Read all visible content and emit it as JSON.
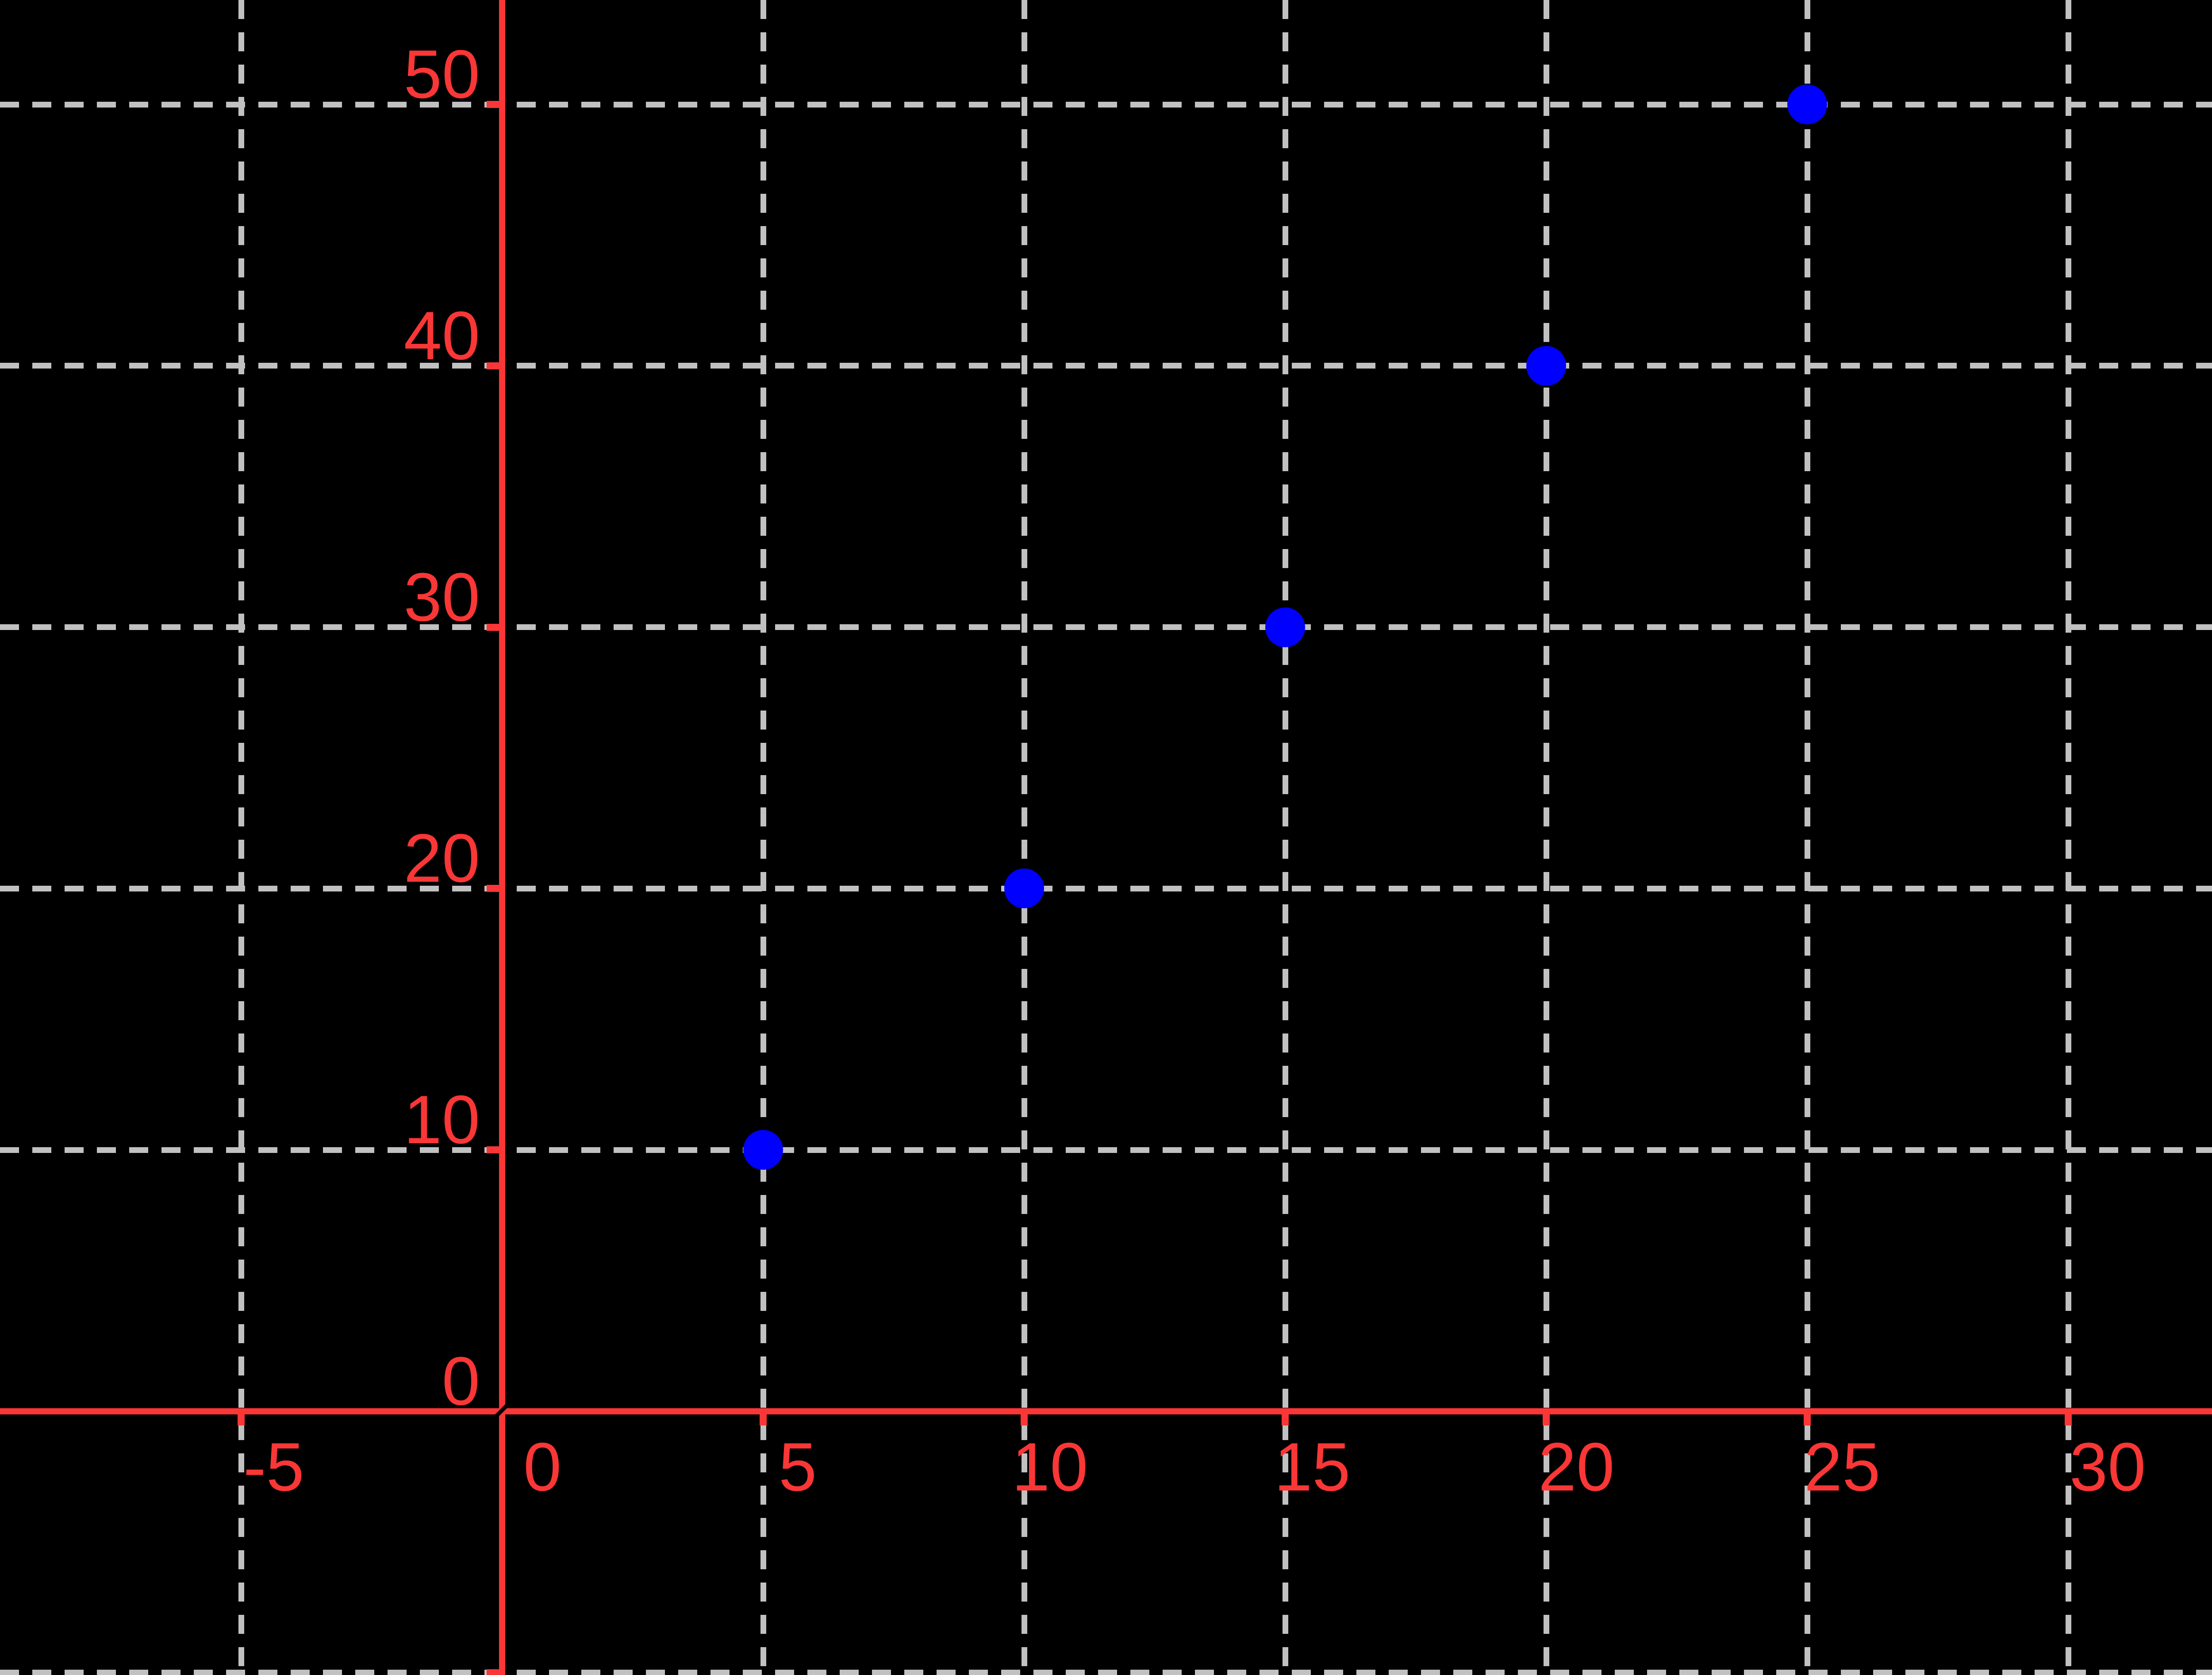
{
  "chart_data": {
    "type": "scatter",
    "title": "",
    "xlabel": "",
    "ylabel": "",
    "points": [
      {
        "x": 5,
        "y": 10
      },
      {
        "x": 10,
        "y": 20
      },
      {
        "x": 15,
        "y": 30
      },
      {
        "x": 20,
        "y": 40
      },
      {
        "x": 25,
        "y": 50
      }
    ],
    "x_ticks": [
      -5,
      0,
      5,
      10,
      15,
      20,
      25,
      30
    ],
    "x_tick_labels": [
      "-5",
      "0",
      "5",
      "10",
      "15",
      "20",
      "25",
      "30"
    ],
    "y_ticks": [
      0,
      10,
      20,
      30,
      40,
      50
    ],
    "y_tick_labels": [
      "0",
      "10",
      "20",
      "30",
      "40",
      "50"
    ],
    "unlabeled_y_gridlines": [
      -10
    ],
    "xlim": [
      -9.6,
      34.6
    ],
    "ylim": [
      -10.1,
      54.0
    ],
    "grid": {
      "on": true,
      "style": "dashed",
      "color": "#c1c1c1"
    },
    "legend": null,
    "colors": {
      "background": "#000000",
      "axis": "#fa3636",
      "tick_label": "#fa3636",
      "point": "#0000ff",
      "gridline": "#c1c1c1"
    }
  }
}
